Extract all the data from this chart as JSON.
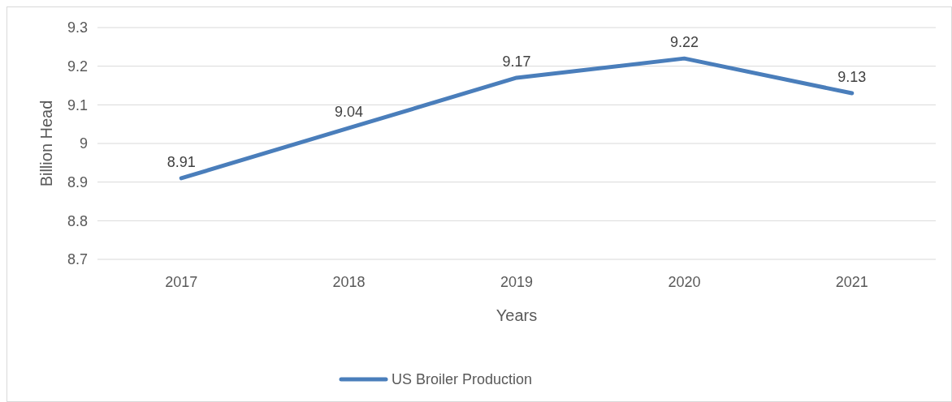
{
  "chart_data": {
    "type": "line",
    "xlabel": "Years",
    "ylabel": "Billion Head",
    "categories": [
      "2017",
      "2018",
      "2019",
      "2020",
      "2021"
    ],
    "series": [
      {
        "name": "US Broiler Production",
        "color": "#4a7ebb",
        "values": [
          8.91,
          9.04,
          9.17,
          9.22,
          9.13
        ]
      }
    ],
    "ylim": [
      8.7,
      9.3
    ],
    "yticks": [
      8.7,
      8.8,
      8.9,
      9,
      9.1,
      9.2,
      9.3
    ],
    "grid": "y",
    "legend": "bottom",
    "data_labels": true,
    "marker": "none",
    "line_style": "solid"
  }
}
